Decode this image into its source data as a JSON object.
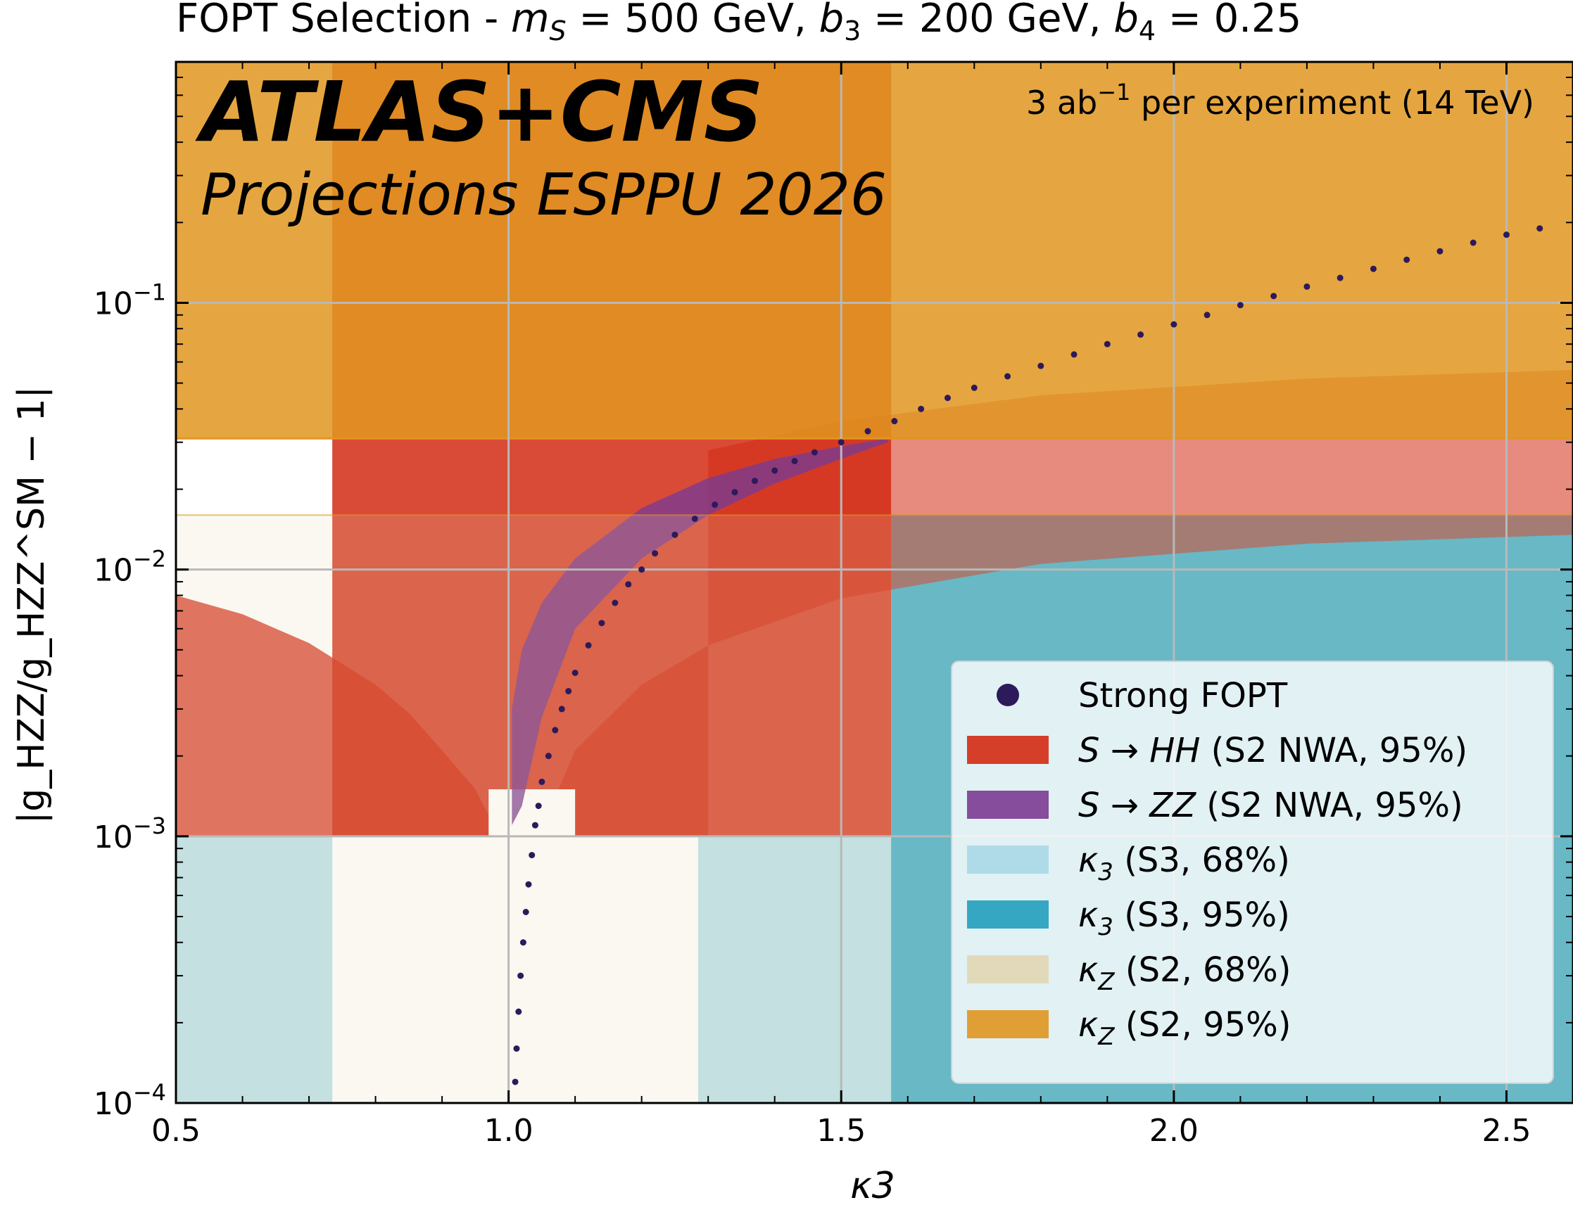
{
  "chart_data": {
    "type": "scatter",
    "title": "FOPT Selection - m_S = 500 GeV, b_3 = 200 GeV, b_4 = 0.25",
    "title_parts": {
      "prefix": "FOPT Selection - ",
      "ms_sym": "m",
      "ms_sub": "S",
      "ms_val": " = 500 GeV, ",
      "b3_sym": "b",
      "b3_sub": "3",
      "b3_val": " = 200 GeV, ",
      "b4_sym": "b",
      "b4_sub": "4",
      "b4_val": " = 0.25"
    },
    "experiment_label": "ATLAS+CMS",
    "projection_label": "Projections ESPPU 2026",
    "lumi_label": {
      "pre": "3 ab",
      "sup": "−1",
      "post": "  per experiment (14 TeV)"
    },
    "xlabel": "κ3",
    "ylabel": "|g_HZZ/g_HZZ^SM − 1|",
    "xlim": [
      0.5,
      2.6
    ],
    "ylim": [
      0.0001,
      0.8
    ],
    "yscale": "log",
    "grid": true,
    "x_ticks": [
      "0.5",
      "1.0",
      "1.5",
      "2.0",
      "2.5"
    ],
    "y_ticks": [
      {
        "base": "10",
        "exp": "−1",
        "value": 0.1
      },
      {
        "base": "10",
        "exp": "−2",
        "value": 0.01
      },
      {
        "base": "10",
        "exp": "−3",
        "value": 0.001
      },
      {
        "base": "10",
        "exp": "−4",
        "value": 0.0001
      }
    ],
    "legend_position": "lower-right",
    "legend": [
      {
        "key": "fopt",
        "label": "Strong FOPT",
        "marker": "dot",
        "color": "#2d1a5a"
      },
      {
        "key": "s_hh",
        "sym": "S → HH",
        "label": "  (S2 NWA, 95%)",
        "marker": "rect",
        "color": "#d42b14"
      },
      {
        "key": "s_zz",
        "sym": "S → ZZ",
        "label": "  (S2 NWA, 95%)",
        "marker": "rect",
        "color": "#7b3b91"
      },
      {
        "key": "k3_68",
        "sym": "κ",
        "sub": "3",
        "label": "  (S3, 68%)",
        "marker": "rect",
        "color": "#a8d8e6"
      },
      {
        "key": "k3_95",
        "sym": "κ",
        "sub": "3",
        "label": "  (S3, 95%)",
        "marker": "rect",
        "color": "#229ebe"
      },
      {
        "key": "kz_68",
        "sym": "κ",
        "sub": "Z",
        "label": "  (S2, 68%)",
        "marker": "rect",
        "color": "#e1d6b4"
      },
      {
        "key": "kz_95",
        "sym": "κ",
        "sub": "Z",
        "label": "  (S2, 95%)",
        "marker": "rect",
        "color": "#e09620"
      }
    ],
    "bands": {
      "k3_68": {
        "x_ranges": [
          [
            0.5,
            0.735
          ],
          [
            1.285,
            1.575
          ]
        ],
        "y_range": [
          0.0001,
          0.001
        ]
      },
      "k3_95": {
        "x_ranges": [
          [
            1.575,
            2.6
          ]
        ],
        "y_range": [
          0.0001,
          0.016
        ]
      },
      "kz_68": {
        "y_max": 0.016
      },
      "kz_95": {
        "y_min": 0.031
      },
      "hh_excluded": {
        "x_range": [
          0.735,
          1.575
        ],
        "y_min": 0.001
      },
      "s_hh_outer_curves": [
        {
          "x": [
            0.5,
            0.6,
            0.7,
            0.8,
            0.85,
            0.9,
            0.95,
            0.97
          ],
          "y": [
            0.008,
            0.0068,
            0.0053,
            0.0037,
            0.0029,
            0.0021,
            0.0015,
            0.0012
          ]
        },
        {
          "x": [
            1.07,
            1.1,
            1.2,
            1.3,
            1.5,
            1.8,
            2.2,
            2.6
          ],
          "y": [
            0.0014,
            0.0021,
            0.0037,
            0.0052,
            0.0078,
            0.0105,
            0.0125,
            0.0135
          ]
        }
      ],
      "s_hh_outer_upper": {
        "x": [
          1.3,
          1.5,
          1.8,
          2.2,
          2.6
        ],
        "y": [
          0.028,
          0.036,
          0.045,
          0.052,
          0.056
        ]
      },
      "s_zz_band": {
        "upper": {
          "x": [
            1.005,
            1.02,
            1.05,
            1.1,
            1.2,
            1.3,
            1.4,
            1.5,
            1.57
          ],
          "y": [
            0.003,
            0.005,
            0.0075,
            0.011,
            0.017,
            0.022,
            0.026,
            0.029,
            0.031
          ]
        },
        "lower": {
          "x": [
            1.57,
            1.5,
            1.4,
            1.3,
            1.2,
            1.1,
            1.05,
            1.02,
            1.005
          ],
          "y": [
            0.03,
            0.026,
            0.021,
            0.016,
            0.011,
            0.006,
            0.0028,
            0.0013,
            0.0011
          ]
        }
      },
      "white_notch": {
        "x_range": [
          0.97,
          1.1
        ],
        "y_top": 0.0015
      }
    },
    "series": [
      {
        "name": "Strong FOPT",
        "x": [
          1.01,
          1.012,
          1.015,
          1.018,
          1.022,
          1.026,
          1.03,
          1.035,
          1.04,
          1.045,
          1.05,
          1.06,
          1.07,
          1.08,
          1.09,
          1.1,
          1.12,
          1.14,
          1.16,
          1.18,
          1.2,
          1.22,
          1.25,
          1.28,
          1.31,
          1.34,
          1.37,
          1.4,
          1.43,
          1.46,
          1.5,
          1.54,
          1.58,
          1.62,
          1.66,
          1.7,
          1.75,
          1.8,
          1.85,
          1.9,
          1.95,
          2.0,
          2.05,
          2.1,
          2.15,
          2.2,
          2.25,
          2.3,
          2.35,
          2.4,
          2.45,
          2.5,
          2.55
        ],
        "y": [
          0.00012,
          0.00016,
          0.00022,
          0.0003,
          0.0004,
          0.00052,
          0.00066,
          0.00085,
          0.0011,
          0.0013,
          0.0016,
          0.002,
          0.0025,
          0.003,
          0.0035,
          0.0041,
          0.0052,
          0.0063,
          0.0075,
          0.0088,
          0.01,
          0.0115,
          0.0135,
          0.0155,
          0.0175,
          0.0195,
          0.0215,
          0.0235,
          0.0255,
          0.0275,
          0.03,
          0.033,
          0.036,
          0.04,
          0.044,
          0.048,
          0.053,
          0.058,
          0.064,
          0.07,
          0.076,
          0.083,
          0.09,
          0.098,
          0.106,
          0.115,
          0.124,
          0.134,
          0.145,
          0.156,
          0.168,
          0.18,
          0.19
        ]
      }
    ]
  }
}
